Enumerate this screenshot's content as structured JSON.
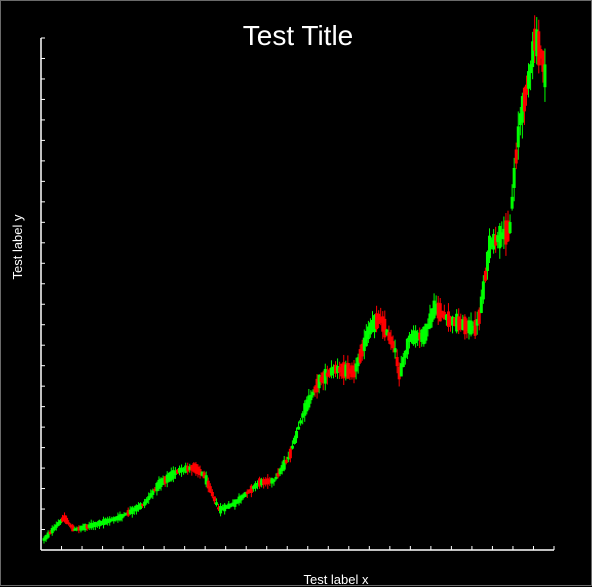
{
  "chart_data": {
    "type": "candlestick",
    "title": "Test Title",
    "xlabel": "Test label x",
    "ylabel": "Test label y",
    "x_tick_count": 26,
    "y_tick_count": 26,
    "grid": false,
    "legend": "none",
    "colors": {
      "up": "#00ff00",
      "down": "#ff0000",
      "axis": "#ffffff",
      "background": "#000000"
    },
    "waypoints": [
      [
        0,
        0.5
      ],
      [
        0.04,
        4.8
      ],
      [
        0.06,
        2.4
      ],
      [
        0.1,
        3.4
      ],
      [
        0.15,
        4.8
      ],
      [
        0.2,
        7.5
      ],
      [
        0.23,
        11.5
      ],
      [
        0.27,
        14.2
      ],
      [
        0.3,
        14.8
      ],
      [
        0.32,
        13.2
      ],
      [
        0.35,
        6.3
      ],
      [
        0.38,
        7.6
      ],
      [
        0.43,
        11.8
      ],
      [
        0.46,
        12.2
      ],
      [
        0.49,
        17.0
      ],
      [
        0.52,
        26.2
      ],
      [
        0.55,
        32.0
      ],
      [
        0.58,
        34.3
      ],
      [
        0.62,
        33.8
      ],
      [
        0.65,
        42.2
      ],
      [
        0.67,
        44.5
      ],
      [
        0.7,
        38.5
      ],
      [
        0.71,
        33.0
      ],
      [
        0.73,
        40.5
      ],
      [
        0.76,
        41.0
      ],
      [
        0.78,
        46.5
      ],
      [
        0.81,
        44.0
      ],
      [
        0.86,
        42.3
      ],
      [
        0.87,
        45.0
      ],
      [
        0.88,
        52.0
      ],
      [
        0.89,
        59.0
      ],
      [
        0.93,
        62.0
      ],
      [
        0.94,
        74.0
      ],
      [
        0.95,
        83.5
      ],
      [
        0.97,
        93.0
      ],
      [
        0.98,
        100.0
      ],
      [
        0.995,
        96.0
      ],
      [
        1.0,
        92.5
      ]
    ],
    "ylim": [
      0,
      100
    ],
    "candle_count": 245
  }
}
